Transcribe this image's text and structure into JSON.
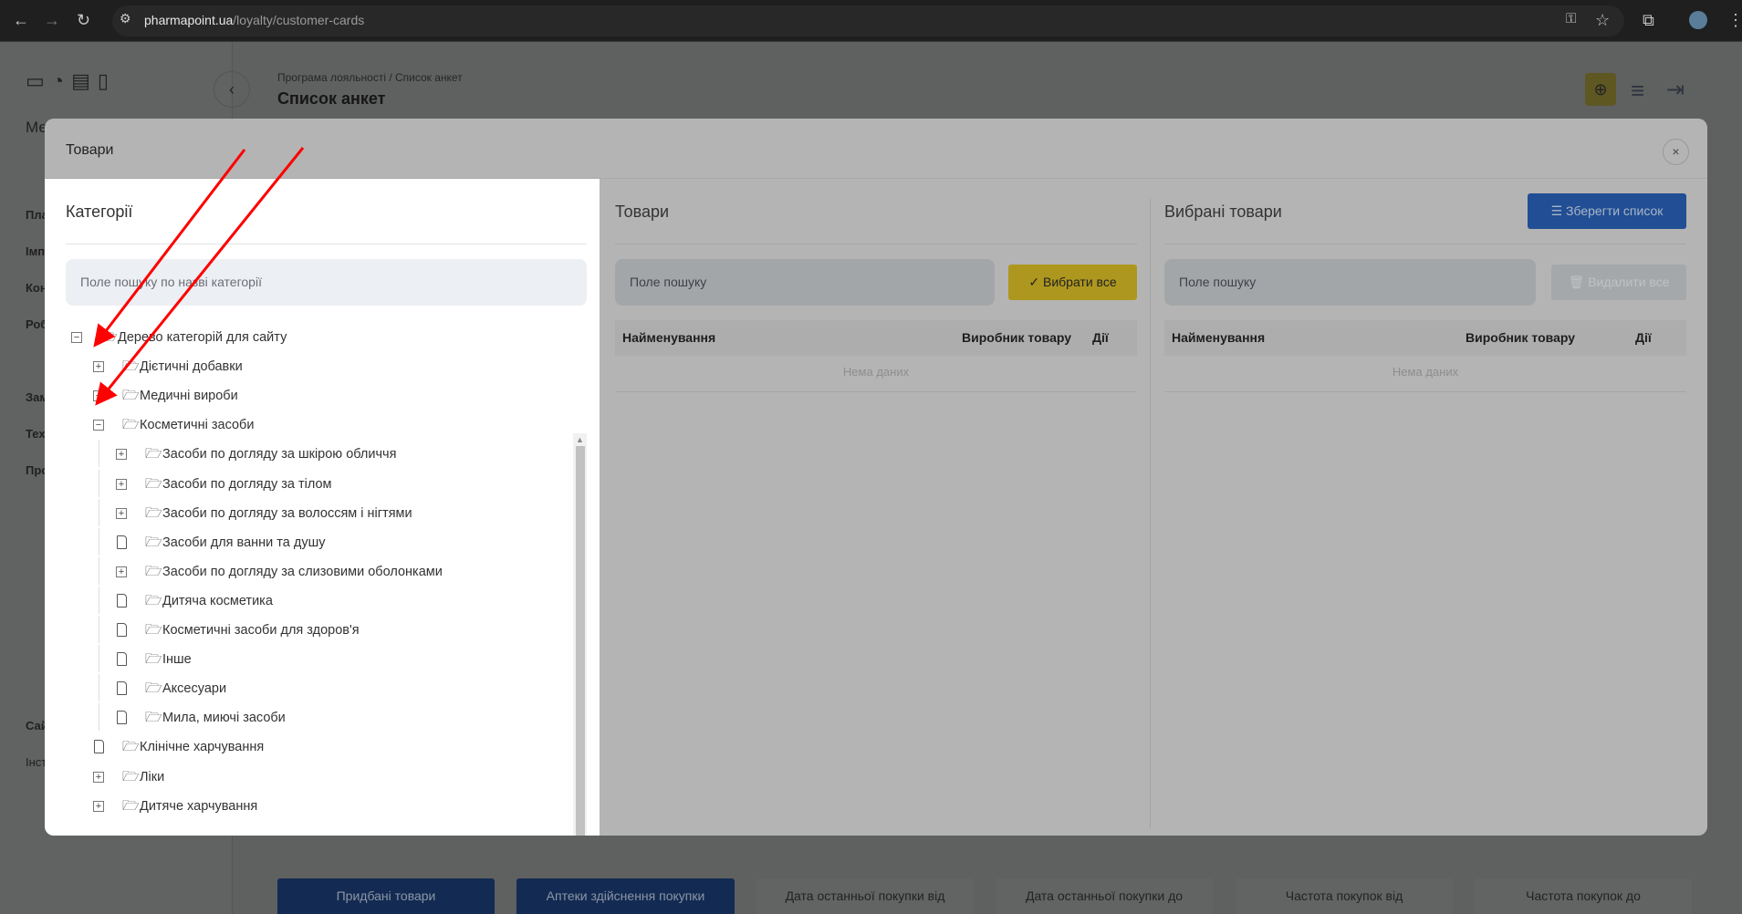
{
  "browser": {
    "url_host": "pharmapoint.ua",
    "url_path": "/loyalty/customer-cards"
  },
  "page": {
    "breadcrumb": "Програма лояльності / Список анкет",
    "title": "Список анкет",
    "sidebar_fragments": [
      "Ме",
      "Пла",
      "Імп",
      "Кон",
      "Роб",
      "Зам",
      "Тех",
      "Про",
      "Сай",
      "Інст"
    ],
    "bottom_buttons": [
      "Придбані товари",
      "Аптеки здійснення покупки"
    ],
    "bottom_tabs": [
      "Дата останньої покупки від",
      "Дата останньої покупки до",
      "Частота покупок від",
      "Частота покупок до"
    ]
  },
  "modal": {
    "title": "Товари",
    "close": "×",
    "categories": {
      "title": "Категорії",
      "search_placeholder": "Поле пошуку по назві категорії",
      "tree": [
        {
          "label": "Дерево категорій для сайту",
          "level": 0,
          "toggle": "minus"
        },
        {
          "label": "Дієтичні добавки",
          "level": 1,
          "toggle": "plus"
        },
        {
          "label": "Медичні вироби",
          "level": 1,
          "toggle": "plus"
        },
        {
          "label": "Косметичні засоби",
          "level": 1,
          "toggle": "minus"
        },
        {
          "label": "Засоби по догляду за шкірою обличчя",
          "level": 2,
          "toggle": "plus"
        },
        {
          "label": "Засоби по догляду за тілом",
          "level": 2,
          "toggle": "plus"
        },
        {
          "label": "Засоби по догляду за волоссям і нігтями",
          "level": 2,
          "toggle": "plus"
        },
        {
          "label": "Засоби для ванни та душу",
          "level": 2,
          "toggle": "leaf"
        },
        {
          "label": "Засоби по догляду за слизовими оболонками",
          "level": 2,
          "toggle": "plus"
        },
        {
          "label": "Дитяча косметика",
          "level": 2,
          "toggle": "leaf"
        },
        {
          "label": "Косметичні засоби для здоров'я",
          "level": 2,
          "toggle": "leaf"
        },
        {
          "label": "Інше",
          "level": 2,
          "toggle": "leaf"
        },
        {
          "label": "Аксесуари",
          "level": 2,
          "toggle": "leaf"
        },
        {
          "label": "Мила, миючі засоби",
          "level": 2,
          "toggle": "leaf"
        },
        {
          "label": "Клінічне харчування",
          "level": 1,
          "toggle": "leaf"
        },
        {
          "label": "Ліки",
          "level": 1,
          "toggle": "plus"
        },
        {
          "label": "Дитяче харчування",
          "level": 1,
          "toggle": "plus"
        }
      ]
    },
    "products": {
      "title": "Товари",
      "search_placeholder": "Поле пошуку",
      "select_all": "✓ Вибрати все",
      "columns": [
        "Найменування",
        "Виробник товару",
        "Дії"
      ],
      "empty": "Нема даних"
    },
    "selected": {
      "title": "Вибрані товари",
      "save": "Зберегти список",
      "search_placeholder": "Поле пошуку",
      "delete_all": "Видалити все",
      "columns": [
        "Найменування",
        "Виробник товару",
        "Дії"
      ],
      "empty": "Нема даних"
    }
  },
  "colors": {
    "annotation_arrow": "#ff0000",
    "save_button": "#214e94",
    "select_all": "#ae971f"
  }
}
